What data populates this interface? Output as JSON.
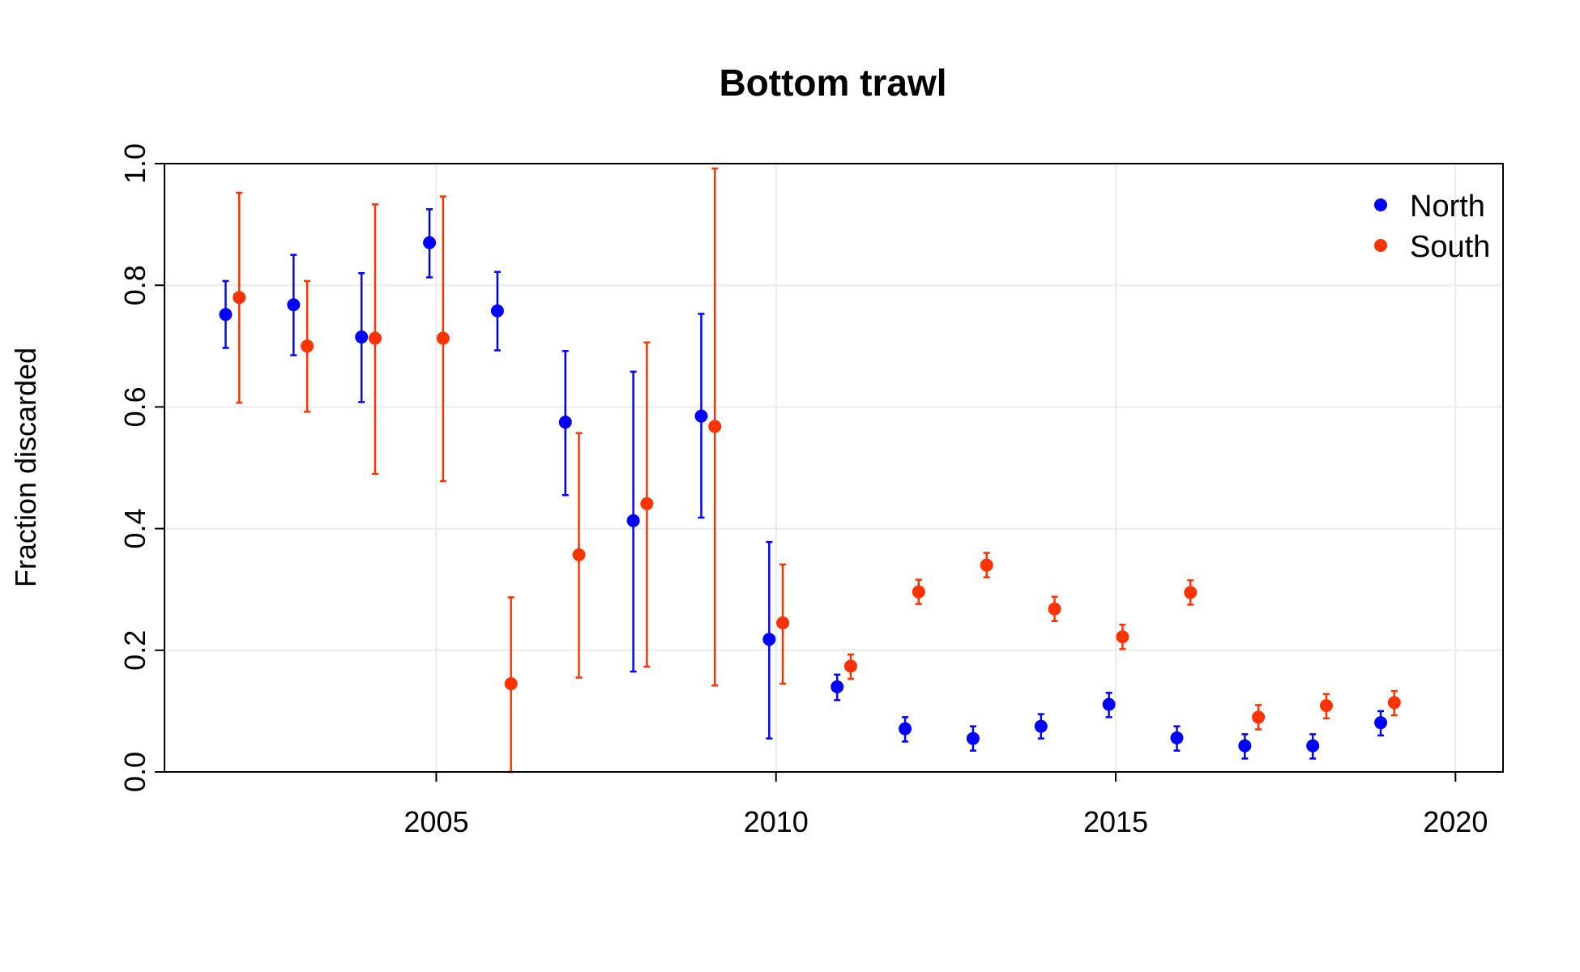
{
  "chart_data": {
    "type": "scatter",
    "title": "Bottom trawl",
    "xlabel": "",
    "ylabel": "Fraction discarded",
    "xlim": [
      2001.0,
      2020.7
    ],
    "ylim": [
      0.0,
      1.0
    ],
    "x_ticks": [
      2005,
      2010,
      2015,
      2020
    ],
    "y_ticks": [
      0.0,
      0.2,
      0.4,
      0.6,
      0.8,
      1.0
    ],
    "x_tick_labels": [
      "2005",
      "2010",
      "2015",
      "2020"
    ],
    "y_tick_labels": [
      "0.0",
      "0.2",
      "0.4",
      "0.6",
      "0.8",
      "1.0"
    ],
    "grid": true,
    "legend_position": "top-right",
    "error_bars": true,
    "series": [
      {
        "name": "North",
        "color": "#0000ff",
        "x": [
          2002,
          2003,
          2004,
          2005,
          2006,
          2007,
          2008,
          2009,
          2010,
          2011,
          2012,
          2013,
          2014,
          2015,
          2016,
          2017,
          2018,
          2019
        ],
        "y": [
          0.752,
          0.768,
          0.715,
          0.87,
          0.758,
          0.575,
          0.413,
          0.585,
          0.218,
          0.14,
          0.071,
          0.055,
          0.075,
          0.111,
          0.056,
          0.043,
          0.043,
          0.081
        ],
        "y_low": [
          0.697,
          0.685,
          0.608,
          0.813,
          0.693,
          0.455,
          0.165,
          0.418,
          0.055,
          0.118,
          0.05,
          0.035,
          0.055,
          0.09,
          0.035,
          0.022,
          0.022,
          0.06
        ],
        "y_high": [
          0.807,
          0.85,
          0.82,
          0.925,
          0.822,
          0.692,
          0.658,
          0.753,
          0.378,
          0.16,
          0.09,
          0.075,
          0.095,
          0.13,
          0.075,
          0.062,
          0.062,
          0.1
        ]
      },
      {
        "name": "South",
        "color": "#ff3300",
        "x": [
          2002,
          2003,
          2004,
          2005,
          2006,
          2007,
          2008,
          2009,
          2010,
          2011,
          2012,
          2013,
          2014,
          2015,
          2016,
          2017,
          2018,
          2019
        ],
        "y": [
          0.78,
          0.7,
          0.713,
          0.713,
          0.145,
          0.357,
          0.441,
          0.568,
          0.245,
          0.174,
          0.296,
          0.34,
          0.268,
          0.222,
          0.295,
          0.09,
          0.109,
          0.114
        ],
        "y_low": [
          0.607,
          0.592,
          0.49,
          0.478,
          0.0,
          0.155,
          0.173,
          0.142,
          0.145,
          0.153,
          0.276,
          0.32,
          0.248,
          0.202,
          0.275,
          0.07,
          0.088,
          0.093
        ],
        "y_high": [
          0.952,
          0.807,
          0.933,
          0.946,
          0.287,
          0.557,
          0.706,
          0.992,
          0.341,
          0.193,
          0.316,
          0.36,
          0.288,
          0.242,
          0.315,
          0.11,
          0.128,
          0.133
        ]
      }
    ]
  }
}
